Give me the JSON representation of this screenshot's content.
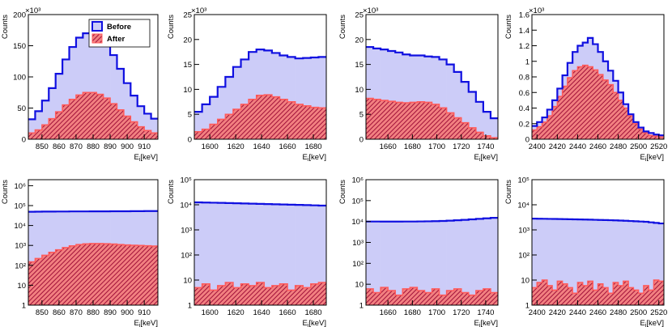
{
  "chart_data": [
    {
      "type": "histogram",
      "y_label": "Counts",
      "y_multiplier": "×10³",
      "x_label": "E",
      "x_label_sub": "i",
      "x_label_unit": "[keV]",
      "legend": "top-right",
      "bins": [
        842,
        846,
        850,
        854,
        858,
        862,
        866,
        870,
        874,
        878,
        882,
        886,
        890,
        894,
        898,
        902,
        906,
        910,
        914,
        918
      ],
      "xlim": [
        842,
        918
      ],
      "xticks": [
        850,
        860,
        870,
        880,
        890,
        900,
        910
      ],
      "ylim": [
        0,
        200
      ],
      "yticks": [
        0,
        50,
        100,
        150,
        200
      ],
      "series": [
        {
          "name": "Before",
          "color": "#1010e0",
          "fill_color": "#ccccf8",
          "values": [
            32,
            45,
            62,
            82,
            105,
            128,
            148,
            163,
            170,
            171,
            166,
            153,
            135,
            113,
            90,
            70,
            53,
            41,
            33
          ]
        },
        {
          "name": "After",
          "color": "#ff5a5a",
          "fill_color": "#f28080",
          "hatch_color": "#a0103a",
          "values": [
            10,
            15,
            23,
            33,
            44,
            55,
            64,
            71,
            75,
            75,
            72,
            66,
            57,
            47,
            37,
            28,
            20,
            14,
            10
          ]
        }
      ]
    },
    {
      "type": "histogram",
      "y_label": "Counts",
      "y_multiplier": "×10³",
      "x_label": "E",
      "x_label_sub": "i",
      "x_label_unit": "[keV]",
      "bins": [
        1588,
        1594,
        1600,
        1606,
        1612,
        1618,
        1624,
        1630,
        1636,
        1642,
        1648,
        1654,
        1660,
        1666,
        1672,
        1678,
        1684,
        1690
      ],
      "xlim": [
        1588,
        1690
      ],
      "xticks": [
        1600,
        1620,
        1640,
        1660,
        1680
      ],
      "ylim": [
        0,
        25
      ],
      "yticks": [
        0,
        5,
        10,
        15,
        20,
        25
      ],
      "series": [
        {
          "color": "#1010e0",
          "fill_color": "#ccccf8",
          "values": [
            5.5,
            7,
            8.5,
            10.5,
            12.5,
            14.5,
            16,
            17.5,
            18,
            17.8,
            17.3,
            16.8,
            16.5,
            16.2,
            16.3,
            16.4,
            16.5
          ]
        },
        {
          "color": "#ff5a5a",
          "fill_color": "#f28080",
          "hatch_color": "#a0103a",
          "values": [
            1.5,
            2,
            3,
            4,
            5,
            6,
            7,
            8,
            8.8,
            8.9,
            8.5,
            8,
            7.5,
            7,
            6.7,
            6.4,
            6.3
          ]
        }
      ]
    },
    {
      "type": "histogram",
      "y_label": "Counts",
      "y_multiplier": "×10³",
      "x_label": "E",
      "x_label_sub": "i",
      "x_label_unit": "[keV]",
      "bins": [
        1642,
        1648,
        1654,
        1660,
        1666,
        1672,
        1678,
        1684,
        1690,
        1696,
        1702,
        1708,
        1714,
        1720,
        1726,
        1732,
        1738,
        1744,
        1750
      ],
      "xlim": [
        1642,
        1750
      ],
      "xticks": [
        1660,
        1680,
        1700,
        1720,
        1740
      ],
      "ylim": [
        0,
        25
      ],
      "yticks": [
        0,
        5,
        10,
        15,
        20,
        25
      ],
      "series": [
        {
          "color": "#1010e0",
          "fill_color": "#ccccf8",
          "values": [
            18.5,
            18.2,
            18,
            17.7,
            17.4,
            17,
            16.8,
            16.8,
            16.6,
            16.5,
            16,
            15,
            13.5,
            11.5,
            9.5,
            7.5,
            5.5,
            4.2
          ]
        },
        {
          "color": "#ff5a5a",
          "fill_color": "#f28080",
          "hatch_color": "#a0103a",
          "values": [
            8.2,
            8,
            7.8,
            7.6,
            7.4,
            7.3,
            7.4,
            7.5,
            7.4,
            7,
            6.3,
            5.3,
            4.3,
            3.3,
            2.3,
            1.4,
            0.7,
            0.3
          ]
        }
      ]
    },
    {
      "type": "histogram",
      "y_label": "Counts",
      "y_multiplier": "×10³",
      "x_label": "E",
      "x_label_sub": "i",
      "x_label_unit": "[keV]",
      "bins": [
        2395,
        2400,
        2405,
        2410,
        2415,
        2420,
        2425,
        2430,
        2435,
        2440,
        2445,
        2450,
        2455,
        2460,
        2465,
        2470,
        2475,
        2480,
        2485,
        2490,
        2495,
        2500,
        2505,
        2510,
        2515,
        2520,
        2525
      ],
      "xlim": [
        2395,
        2525
      ],
      "xticks": [
        2400,
        2420,
        2440,
        2460,
        2480,
        2500,
        2520
      ],
      "ylim": [
        0,
        1.6
      ],
      "yticks": [
        0,
        0.2,
        0.4,
        0.6,
        0.8,
        1,
        1.2,
        1.4,
        1.6
      ],
      "series": [
        {
          "color": "#1010e0",
          "fill_color": "#ccccf8",
          "values": [
            0.17,
            0.22,
            0.28,
            0.38,
            0.5,
            0.65,
            0.82,
            0.98,
            1.12,
            1.2,
            1.24,
            1.3,
            1.22,
            1.12,
            1.0,
            0.88,
            0.75,
            0.6,
            0.45,
            0.32,
            0.22,
            0.15,
            0.1,
            0.08,
            0.06,
            0.05
          ]
        },
        {
          "color": "#ff5a5a",
          "fill_color": "#f28080",
          "hatch_color": "#a0103a",
          "values": [
            0.12,
            0.16,
            0.22,
            0.3,
            0.42,
            0.55,
            0.68,
            0.79,
            0.88,
            0.93,
            0.95,
            0.93,
            0.89,
            0.83,
            0.76,
            0.7,
            0.6,
            0.5,
            0.4,
            0.3,
            0.2,
            0.13,
            0.08,
            0.05,
            0.04,
            0.03
          ]
        }
      ]
    },
    {
      "type": "histogram",
      "y_label": "Counts",
      "x_label": "E",
      "x_label_sub": "i",
      "x_label_unit": "[keV]",
      "log_y": true,
      "bins": [
        842,
        846,
        850,
        854,
        858,
        862,
        866,
        870,
        874,
        878,
        882,
        886,
        890,
        894,
        898,
        902,
        906,
        910,
        914,
        918
      ],
      "xlim": [
        842,
        918
      ],
      "xticks": [
        850,
        860,
        870,
        880,
        890,
        900,
        910
      ],
      "ylim": [
        1,
        2000000
      ],
      "yticks": [
        1,
        10,
        {
          "value": 100,
          "label": "10²"
        },
        {
          "value": 1000,
          "label": "10³"
        },
        {
          "value": 10000,
          "label": "10⁴"
        },
        {
          "value": 100000,
          "label": "10⁵"
        },
        {
          "value": 1000000,
          "label": "10⁶"
        }
      ],
      "series": [
        {
          "color": "#1010e0",
          "fill_color": "#ccccf8",
          "values": [
            49000,
            49500,
            50000,
            50000,
            50500,
            50500,
            51000,
            51000,
            51000,
            51500,
            51500,
            51500,
            52000,
            52000,
            52000,
            52500,
            52500,
            53000,
            53000
          ]
        },
        {
          "color": "#ff5a5a",
          "fill_color": "#f28080",
          "hatch_color": "#a0103a",
          "values": [
            150,
            220,
            320,
            450,
            600,
            780,
            950,
            1100,
            1200,
            1250,
            1250,
            1220,
            1170,
            1110,
            1060,
            1020,
            990,
            960,
            930
          ]
        }
      ]
    },
    {
      "type": "histogram",
      "y_label": "Counts",
      "x_label": "E",
      "x_label_sub": "i",
      "x_label_unit": "[keV]",
      "log_y": true,
      "bins": [
        1588,
        1594,
        1600,
        1606,
        1612,
        1618,
        1624,
        1630,
        1636,
        1642,
        1648,
        1654,
        1660,
        1666,
        1672,
        1678,
        1684,
        1690
      ],
      "xlim": [
        1588,
        1690
      ],
      "xticks": [
        1600,
        1620,
        1640,
        1660,
        1680
      ],
      "ylim": [
        1,
        100000
      ],
      "yticks": [
        1,
        10,
        {
          "value": 100,
          "label": "10²"
        },
        {
          "value": 1000,
          "label": "10³"
        },
        {
          "value": 10000,
          "label": "10⁴"
        },
        {
          "value": 100000,
          "label": "10⁵"
        }
      ],
      "series": [
        {
          "color": "#1010e0",
          "fill_color": "#ccccf8",
          "values": [
            12500,
            12300,
            12100,
            11900,
            11700,
            11500,
            11300,
            11100,
            10900,
            10700,
            10500,
            10300,
            10100,
            9900,
            9700,
            9500,
            9300
          ]
        },
        {
          "color": "#ff5a5a",
          "fill_color": "#f28080",
          "hatch_color": "#a0103a",
          "values": [
            5,
            7,
            4,
            6,
            8,
            5,
            7,
            6,
            8,
            5,
            6,
            7,
            4,
            6,
            5,
            7,
            8
          ]
        }
      ]
    },
    {
      "type": "histogram",
      "y_label": "Counts",
      "x_label": "E",
      "x_label_sub": "i",
      "x_label_unit": "[keV]",
      "log_y": true,
      "bins": [
        1642,
        1648,
        1654,
        1660,
        1666,
        1672,
        1678,
        1684,
        1690,
        1696,
        1702,
        1708,
        1714,
        1720,
        1726,
        1732,
        1738,
        1744,
        1750
      ],
      "xlim": [
        1642,
        1750
      ],
      "xticks": [
        1660,
        1680,
        1700,
        1720,
        1740
      ],
      "ylim": [
        1,
        1000000
      ],
      "yticks": [
        1,
        10,
        {
          "value": 100,
          "label": "10²"
        },
        {
          "value": 1000,
          "label": "10³"
        },
        {
          "value": 10000,
          "label": "10⁴"
        },
        {
          "value": 100000,
          "label": "10⁵"
        },
        {
          "value": 1000000,
          "label": "10⁶"
        }
      ],
      "series": [
        {
          "color": "#1010e0",
          "fill_color": "#ccccf8",
          "values": [
            10000,
            10000,
            9900,
            9900,
            9900,
            10000,
            10000,
            10100,
            10200,
            10400,
            10600,
            11000,
            11500,
            12000,
            12700,
            13400,
            14200,
            15000
          ]
        },
        {
          "color": "#ff5a5a",
          "fill_color": "#f28080",
          "hatch_color": "#a0103a",
          "values": [
            6,
            4,
            7,
            5,
            3,
            6,
            7,
            5,
            4,
            6,
            3,
            5,
            6,
            4,
            3,
            5,
            6,
            4
          ]
        }
      ]
    },
    {
      "type": "histogram",
      "y_label": "Counts",
      "x_label": "E",
      "x_label_sub": "i",
      "x_label_unit": "[keV]",
      "log_y": true,
      "bins": [
        2395,
        2400,
        2405,
        2410,
        2415,
        2420,
        2425,
        2430,
        2435,
        2440,
        2445,
        2450,
        2455,
        2460,
        2465,
        2470,
        2475,
        2480,
        2485,
        2490,
        2495,
        2500,
        2505,
        2510,
        2515,
        2520,
        2525
      ],
      "xlim": [
        2395,
        2525
      ],
      "xticks": [
        2400,
        2420,
        2440,
        2460,
        2480,
        2500,
        2520
      ],
      "ylim": [
        1,
        100000
      ],
      "yticks": [
        1,
        10,
        {
          "value": 100,
          "label": "10²"
        },
        {
          "value": 1000,
          "label": "10³"
        },
        {
          "value": 10000,
          "label": "10⁴"
        },
        {
          "value": 100000,
          "label": "10⁵"
        }
      ],
      "series": [
        {
          "color": "#1010e0",
          "fill_color": "#ccccf8",
          "values": [
            2800,
            2780,
            2760,
            2740,
            2720,
            2700,
            2680,
            2650,
            2620,
            2600,
            2580,
            2550,
            2520,
            2490,
            2460,
            2430,
            2400,
            2350,
            2300,
            2250,
            2200,
            2150,
            2100,
            2000,
            1900,
            1800
          ]
        },
        {
          "color": "#ff5a5a",
          "fill_color": "#f28080",
          "hatch_color": "#a0103a",
          "values": [
            5,
            8,
            10,
            6,
            4,
            9,
            7,
            5,
            3,
            8,
            6,
            9,
            4,
            7,
            5,
            3,
            8,
            6,
            9,
            5,
            4,
            3,
            6,
            4,
            10,
            9
          ]
        }
      ]
    }
  ]
}
